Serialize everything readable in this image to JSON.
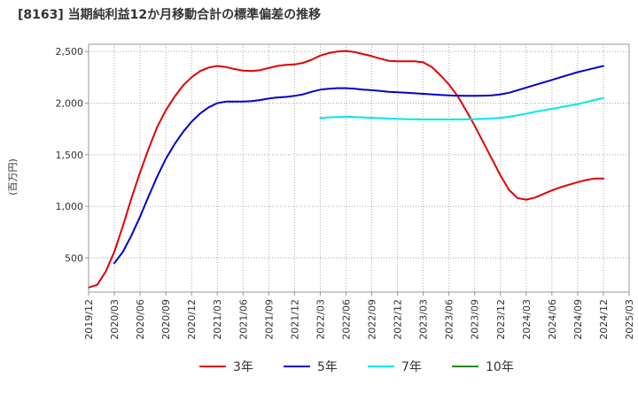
{
  "chart_data": {
    "type": "line",
    "title": "[8163]  当期純利益12か月移動合計の標準偏差の推移",
    "ylabel": "(百万円)",
    "xlabel": "",
    "ylim": [
      170,
      2570
    ],
    "y_ticks": [
      500,
      1000,
      1500,
      2000,
      2500
    ],
    "y_tick_labels": [
      "500",
      "1,000",
      "1,500",
      "2,000",
      "2,500"
    ],
    "x_range": [
      "2019-12",
      "2025-03"
    ],
    "x_tick_labels": [
      "2019/12",
      "2020/03",
      "2020/06",
      "2020/09",
      "2020/12",
      "2021/03",
      "2021/06",
      "2021/09",
      "2021/12",
      "2022/03",
      "2022/06",
      "2022/09",
      "2022/12",
      "2023/03",
      "2023/06",
      "2023/09",
      "2023/12",
      "2024/03",
      "2024/06",
      "2024/09",
      "2024/12",
      "2025/03"
    ],
    "grid": true,
    "legend_position": "bottom",
    "series": [
      {
        "name": "3年",
        "color": "#e00000",
        "x": [
          "2019-12",
          "2020-01",
          "2020-02",
          "2020-03",
          "2020-04",
          "2020-05",
          "2020-06",
          "2020-07",
          "2020-08",
          "2020-09",
          "2020-10",
          "2020-11",
          "2020-12",
          "2021-01",
          "2021-02",
          "2021-03",
          "2021-04",
          "2021-05",
          "2021-06",
          "2021-07",
          "2021-08",
          "2021-09",
          "2021-10",
          "2021-11",
          "2021-12",
          "2022-01",
          "2022-02",
          "2022-03",
          "2022-04",
          "2022-05",
          "2022-06",
          "2022-07",
          "2022-08",
          "2022-09",
          "2022-10",
          "2022-11",
          "2022-12",
          "2023-01",
          "2023-02",
          "2023-03",
          "2023-04",
          "2023-05",
          "2023-06",
          "2023-07",
          "2023-08",
          "2023-09",
          "2023-10",
          "2023-11",
          "2023-12",
          "2024-01",
          "2024-02",
          "2024-03",
          "2024-04",
          "2024-05",
          "2024-06",
          "2024-07",
          "2024-08",
          "2024-09",
          "2024-10",
          "2024-11",
          "2024-12"
        ],
        "values": [
          215,
          240,
          370,
          560,
          810,
          1080,
          1330,
          1560,
          1770,
          1930,
          2060,
          2170,
          2250,
          2310,
          2345,
          2360,
          2350,
          2330,
          2315,
          2310,
          2320,
          2340,
          2360,
          2370,
          2375,
          2390,
          2420,
          2460,
          2485,
          2500,
          2505,
          2495,
          2475,
          2455,
          2430,
          2410,
          2405,
          2405,
          2405,
          2395,
          2350,
          2270,
          2180,
          2070,
          1930,
          1780,
          1620,
          1460,
          1300,
          1160,
          1080,
          1065,
          1085,
          1120,
          1155,
          1185,
          1210,
          1235,
          1255,
          1270,
          1270
        ]
      },
      {
        "name": "5年",
        "color": "#0000cc",
        "x": [
          "2020-03",
          "2020-04",
          "2020-05",
          "2020-06",
          "2020-07",
          "2020-08",
          "2020-09",
          "2020-10",
          "2020-11",
          "2020-12",
          "2021-01",
          "2021-02",
          "2021-03",
          "2021-04",
          "2021-05",
          "2021-06",
          "2021-07",
          "2021-08",
          "2021-09",
          "2021-10",
          "2021-11",
          "2021-12",
          "2022-01",
          "2022-02",
          "2022-03",
          "2022-04",
          "2022-05",
          "2022-06",
          "2022-07",
          "2022-08",
          "2022-09",
          "2022-10",
          "2022-11",
          "2022-12",
          "2023-01",
          "2023-02",
          "2023-03",
          "2023-04",
          "2023-05",
          "2023-06",
          "2023-07",
          "2023-08",
          "2023-09",
          "2023-10",
          "2023-11",
          "2023-12",
          "2024-01",
          "2024-02",
          "2024-03",
          "2024-04",
          "2024-05",
          "2024-06",
          "2024-07",
          "2024-08",
          "2024-09",
          "2024-10",
          "2024-11",
          "2024-12"
        ],
        "values": [
          450,
          560,
          720,
          900,
          1100,
          1290,
          1460,
          1600,
          1720,
          1820,
          1900,
          1960,
          2000,
          2015,
          2015,
          2015,
          2020,
          2030,
          2045,
          2055,
          2060,
          2070,
          2085,
          2110,
          2130,
          2140,
          2145,
          2145,
          2140,
          2130,
          2125,
          2118,
          2110,
          2105,
          2100,
          2095,
          2090,
          2085,
          2080,
          2075,
          2072,
          2070,
          2070,
          2072,
          2075,
          2085,
          2100,
          2125,
          2150,
          2175,
          2200,
          2225,
          2250,
          2275,
          2300,
          2320,
          2340,
          2360
        ]
      },
      {
        "name": "7年",
        "color": "#00e5ee",
        "x": [
          "2022-03",
          "2022-04",
          "2022-05",
          "2022-06",
          "2022-07",
          "2022-08",
          "2022-09",
          "2022-10",
          "2022-11",
          "2022-12",
          "2023-01",
          "2023-02",
          "2023-03",
          "2023-04",
          "2023-05",
          "2023-06",
          "2023-07",
          "2023-08",
          "2023-09",
          "2023-10",
          "2023-11",
          "2023-12",
          "2024-01",
          "2024-02",
          "2024-03",
          "2024-04",
          "2024-05",
          "2024-06",
          "2024-07",
          "2024-08",
          "2024-09",
          "2024-10",
          "2024-11",
          "2024-12"
        ],
        "values": [
          1855,
          1862,
          1865,
          1867,
          1865,
          1862,
          1858,
          1854,
          1850,
          1847,
          1845,
          1843,
          1842,
          1842,
          1842,
          1842,
          1842,
          1843,
          1845,
          1848,
          1852,
          1858,
          1868,
          1882,
          1898,
          1915,
          1930,
          1945,
          1960,
          1975,
          1990,
          2010,
          2030,
          2050
        ]
      },
      {
        "name": "10年",
        "color": "#228b22",
        "x": [],
        "values": []
      }
    ]
  }
}
